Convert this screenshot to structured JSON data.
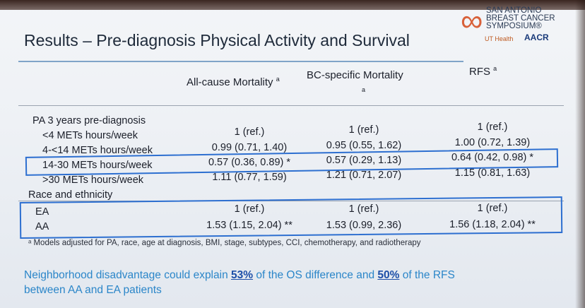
{
  "title": "Results – Pre-diagnosis Physical Activity and Survival",
  "logo": {
    "line1": "SAN ANTONIO",
    "line2": "BREAST CANCER",
    "line3": "SYMPOSIUM®",
    "ut": "UT Health",
    "aacr": "AACR"
  },
  "columns": {
    "c1": "All-cause Mortality",
    "c1_sup": "a",
    "c2": "BC-specific Mortality",
    "c2_sup": "a",
    "c3": "RFS",
    "c3_sup": "a"
  },
  "sections": {
    "pa": "PA 3 years pre-diagnosis",
    "race": "Race and ethnicity"
  },
  "rows": [
    {
      "label": "<4 METs hours/week",
      "c1": "1 (ref.)",
      "c2": "1 (ref.)",
      "c3": "1 (ref.)"
    },
    {
      "label": "4-<14 METs hours/week",
      "c1": "0.99 (0.71, 1.40)",
      "c2": "0.95 (0.55, 1.62)",
      "c3": "1.00 (0.72, 1.39)"
    },
    {
      "label": "14-30 METs hours/week",
      "c1": "0.57 (0.36, 0.89) *",
      "c2": "0.57 (0.29, 1.13)",
      "c3": "0.64 (0.42, 0.98) *"
    },
    {
      "label": ">30 METs hours/week",
      "c1": "1.11 (0.77, 1.59)",
      "c2": "1.21 (0.71, 2.07)",
      "c3": "1.15 (0.81, 1.63)"
    },
    {
      "label": "EA",
      "c1": "1 (ref.)",
      "c2": "1 (ref.)",
      "c3": "1 (ref.)"
    },
    {
      "label": "AA",
      "c1": "1.53 (1.15, 2.04) **",
      "c2": "1.53 (0.99, 2.36)",
      "c3": "1.56 (1.18, 2.04) **"
    }
  ],
  "footnote": "ᵃ Models adjusted for PA, race, age at diagnosis, BMI, stage, subtypes, CCI, chemotherapy, and radiotherapy",
  "summary": {
    "part1": "Neighborhood disadvantage could explain ",
    "pct1": "53%",
    "part2": " of the OS difference and ",
    "pct2": "50%",
    "part3": " of the RFS",
    "line2": "between AA and EA patients"
  }
}
